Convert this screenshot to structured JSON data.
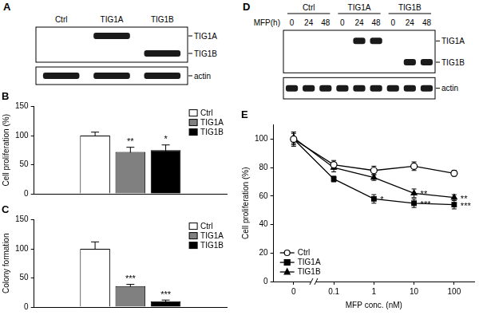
{
  "blot_panels": [
    {
      "panel": "A",
      "lane_labels": [
        "Ctrl",
        "TIG1A",
        "TIG1B"
      ],
      "blots": [
        {
          "band_labels": [
            "TIG1A",
            "TIG1B"
          ],
          "bands": [
            null,
            "TIG1A",
            "TIG1B"
          ]
        },
        {
          "band_labels": [
            "actin"
          ],
          "bands": [
            "actin",
            "actin",
            "actin"
          ]
        }
      ]
    },
    {
      "panel": "D",
      "group_labels": [
        "Ctrl",
        "TIG1A",
        "TIG1B"
      ],
      "lane_title": "MFP(h)",
      "lane_labels": [
        0,
        24,
        48,
        0,
        24,
        48,
        0,
        24,
        48
      ],
      "blots": [
        {
          "band_labels": [
            "TIG1A",
            "TIG1B"
          ],
          "bands": [
            null,
            null,
            null,
            null,
            "TIG1A",
            "TIG1A",
            null,
            "TIG1B",
            "TIG1B"
          ]
        },
        {
          "band_labels": [
            "actin"
          ],
          "bands": [
            "actin",
            "actin",
            "actin",
            "actin",
            "actin",
            "actin",
            "actin",
            "actin",
            "actin"
          ]
        }
      ]
    }
  ],
  "chart_data": [
    {
      "title": "B",
      "type": "bar",
      "y_label": "Cell proliferation (%)",
      "categories": [
        null
      ],
      "series": [
        {
          "name": "Ctrl",
          "color": "#ffffff",
          "values": [
            100
          ],
          "errors": [
            6
          ],
          "annotations": [
            null
          ]
        },
        {
          "name": "TIG1A",
          "color": "#808080",
          "values": [
            72
          ],
          "errors": [
            8
          ],
          "annotations": [
            "**"
          ]
        },
        {
          "name": "TIG1B",
          "color": "#000000",
          "values": [
            75
          ],
          "errors": [
            9
          ],
          "annotations": [
            "*"
          ]
        }
      ],
      "ylim": [
        0,
        150
      ],
      "yticks": [
        0,
        50,
        100,
        150
      ],
      "grid": false,
      "legend": "upper right",
      "tick_labels": "y"
    },
    {
      "title": "C",
      "type": "bar",
      "y_label": "Colony formation",
      "categories": [
        null
      ],
      "series": [
        {
          "name": "Ctrl",
          "color": "#ffffff",
          "values": [
            100
          ],
          "errors": [
            12
          ],
          "annotations": [
            null
          ]
        },
        {
          "name": "TIG1A",
          "color": "#808080",
          "values": [
            36
          ],
          "errors": [
            3
          ],
          "annotations": [
            "***"
          ]
        },
        {
          "name": "TIG1B",
          "color": "#000000",
          "values": [
            10
          ],
          "errors": [
            2
          ],
          "annotations": [
            "***"
          ]
        }
      ],
      "ylim": [
        0,
        150
      ],
      "yticks": [
        0,
        50,
        100,
        150
      ],
      "grid": false,
      "legend": "upper right",
      "tick_labels": "y"
    },
    {
      "title": "E",
      "type": "line",
      "x_label": "MFP conc. (nM)",
      "y_label": "Cell proliferation (%)",
      "categories": [
        "0",
        "0.1",
        "1",
        "10",
        "100"
      ],
      "series": [
        {
          "name": "Ctrl",
          "color": "#000000",
          "marker": "open_circle",
          "values": [
            100,
            82,
            78,
            81,
            76
          ],
          "errors": [
            5,
            3,
            3,
            3,
            2
          ],
          "annotations": [
            null,
            null,
            null,
            null,
            null
          ]
        },
        {
          "name": "TIG1A",
          "color": "#000000",
          "marker": "square",
          "values": [
            100,
            72,
            58,
            55,
            54
          ],
          "errors": [
            4,
            2,
            3,
            3,
            3
          ],
          "annotations": [
            null,
            null,
            "*",
            "***",
            "***"
          ]
        },
        {
          "name": "TIG1B",
          "color": "#000000",
          "marker": "triangle",
          "values": [
            101,
            80,
            73,
            62,
            59
          ],
          "errors": [
            4,
            3,
            2,
            3,
            2
          ],
          "annotations": [
            null,
            null,
            null,
            "**",
            "**"
          ]
        }
      ],
      "ylim": [
        0,
        110
      ],
      "yticks": [
        0,
        20,
        40,
        60,
        80,
        100
      ],
      "grid": false,
      "legend": "lower left"
    }
  ]
}
